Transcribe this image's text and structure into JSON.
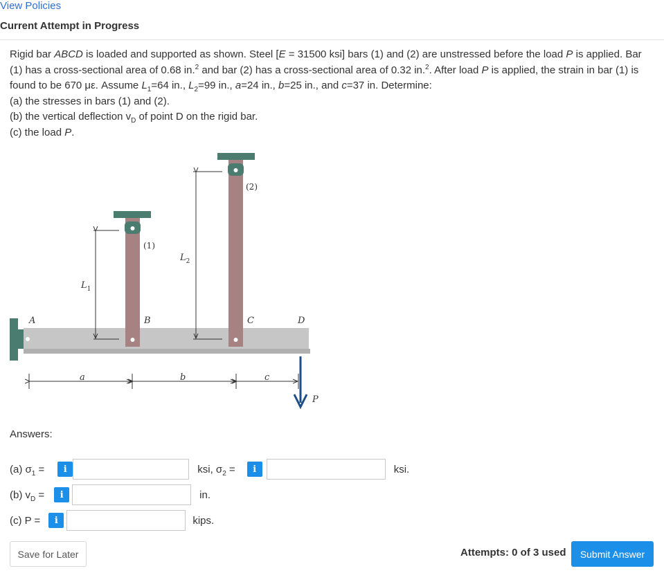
{
  "header": {
    "view_policies": "View Policies",
    "attempt_status": "Current Attempt in Progress"
  },
  "problem": {
    "intro_1": "Rigid bar ",
    "bar_name": "ABCD",
    "intro_2": " is loaded and supported as shown. Steel [",
    "E_sym": "E",
    "intro_3": " = 31500 ksi] bars (1) and (2) are unstressed before the load ",
    "P_sym": "P",
    "intro_4": " is applied. Bar (1) has a cross-sectional area of 0.68 in.",
    "area_exp_1": "2",
    "intro_5": " and bar (2) has a cross-sectional area of 0.32 in.",
    "area_exp_2": "2",
    "intro_6": ". After load ",
    "P_sym_2": "P",
    "intro_7": " is applied, the strain in bar (1) is found to be 670 με. Assume ",
    "L_sym": "L",
    "sub_1": "1",
    "intro_8": "=64 in., ",
    "L_sym_2": "L",
    "sub_2": "2",
    "intro_9": "=99 in., ",
    "a_sym": "a",
    "intro_10": "=24 in., ",
    "b_sym": "b",
    "intro_11": "=25 in., and ",
    "c_sym": "c",
    "intro_12": "=37 in. Determine:",
    "part_a": "(a) the stresses in bars (1) and (2).",
    "part_b_1": "(b) the vertical deflection v",
    "part_b_sub": "D",
    "part_b_2": " of point D on the rigid bar.",
    "part_c_1": "(c) the load ",
    "part_c_P": "P",
    "part_c_2": "."
  },
  "figure": {
    "label_A": "A",
    "label_B": "B",
    "label_C": "C",
    "label_D": "D",
    "label_bar1": "(1)",
    "label_bar2": "(2)",
    "label_L1": "L",
    "label_L1_sub": "1",
    "label_L2": "L",
    "label_L2_sub": "2",
    "label_a": "a",
    "label_b": "b",
    "label_c": "c",
    "label_P": "P",
    "colors": {
      "bar_rod": "#a68282",
      "support_teal": "#4a7c70",
      "rigid_bar": "#c6c6c6",
      "load_arrow": "#1e4e86"
    }
  },
  "answers": {
    "title": "Answers:",
    "sigma1_label": "(a) σ",
    "sigma1_sub": "1",
    "sigma1_eq": " =",
    "sigma1_value": "",
    "sigma1_unit": "ksi, σ",
    "sigma2_sub": "2",
    "sigma2_eq": " =",
    "sigma2_value": "",
    "sigma2_unit": "ksi.",
    "vd_label": "(b) v",
    "vd_sub": "D",
    "vd_eq": " =",
    "vd_value": "",
    "vd_unit": "in.",
    "p_label": "(c) P =",
    "p_value": "",
    "p_unit": "kips.",
    "info_icon": "i"
  },
  "footer": {
    "save_label": "Save for Later",
    "attempts_text": "Attempts: 0 of 3 used",
    "submit_label": "Submit Answer"
  }
}
